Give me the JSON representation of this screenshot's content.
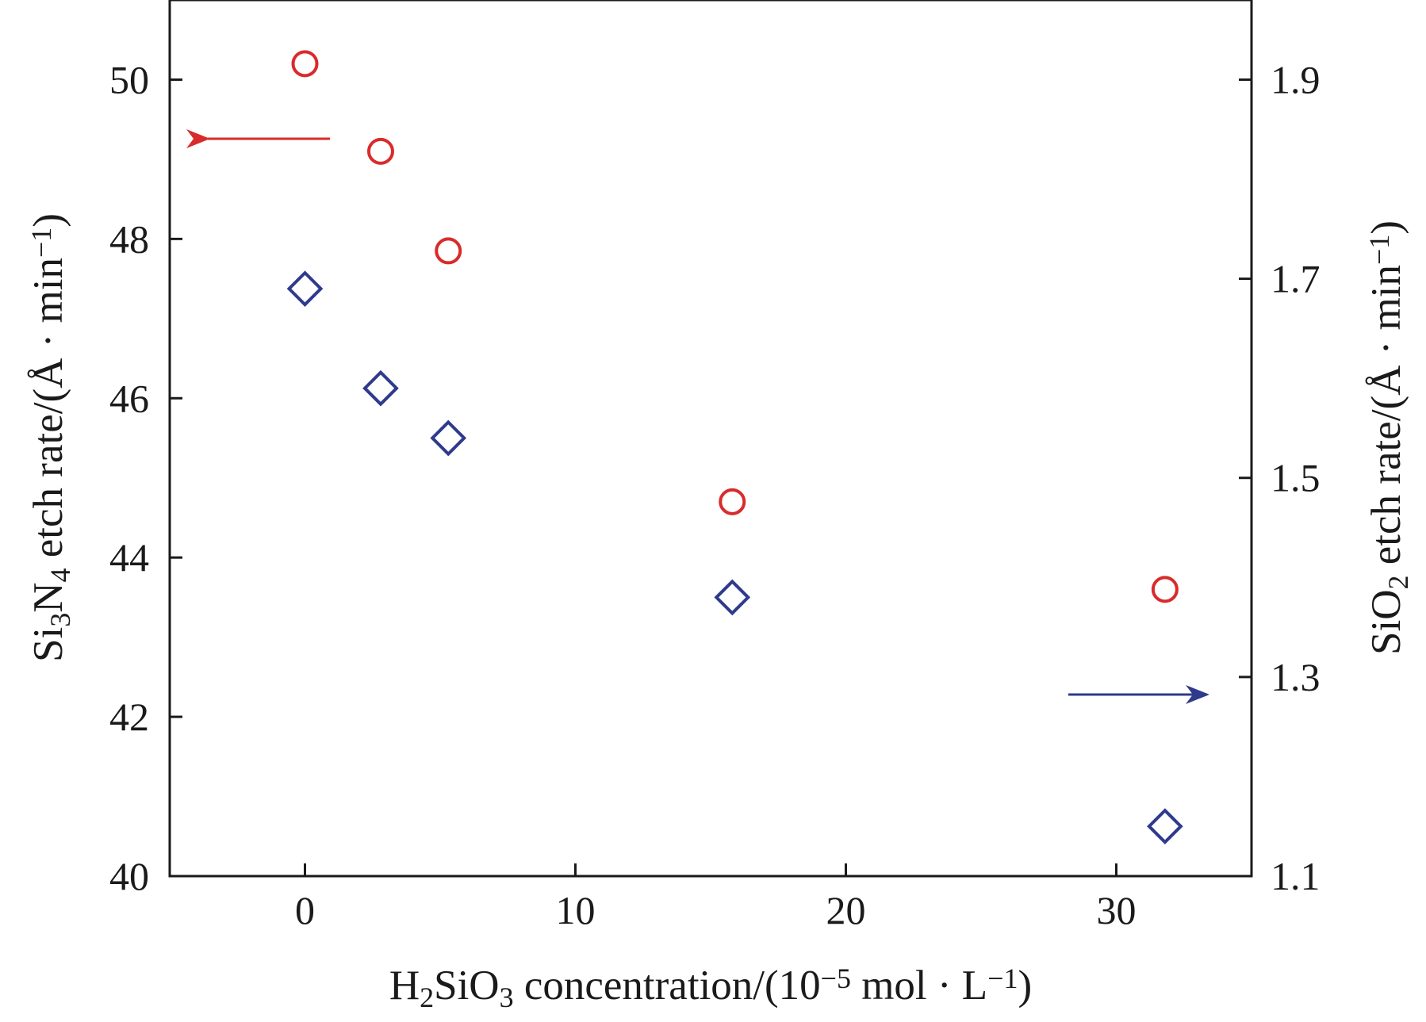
{
  "chart_data": {
    "type": "scatter",
    "x_axis": {
      "label_parts": [
        {
          "t": "H",
          "s": "n"
        },
        {
          "t": "2",
          "s": "sub"
        },
        {
          "t": "SiO",
          "s": "n"
        },
        {
          "t": "3",
          "s": "sub"
        },
        {
          "t": " concentration/(10",
          "s": "n"
        },
        {
          "t": "−5",
          "s": "sup"
        },
        {
          "t": " mol · L",
          "s": "n"
        },
        {
          "t": "−1",
          "s": "sup"
        },
        {
          "t": ")",
          "s": "n"
        }
      ],
      "range": [
        -5,
        35
      ],
      "ticks": [
        0,
        10,
        20,
        30
      ],
      "tick_labels": [
        "0",
        "10",
        "20",
        "30"
      ]
    },
    "y_left_axis": {
      "label_parts": [
        {
          "t": "Si",
          "s": "n"
        },
        {
          "t": "3",
          "s": "sub"
        },
        {
          "t": "N",
          "s": "n"
        },
        {
          "t": "4",
          "s": "sub"
        },
        {
          "t": " etch rate/(Å · min",
          "s": "n"
        },
        {
          "t": "−1",
          "s": "sup"
        },
        {
          "t": ")",
          "s": "n"
        }
      ],
      "range": [
        40,
        51
      ],
      "ticks": [
        40,
        42,
        44,
        46,
        48,
        50
      ],
      "tick_labels": [
        "40",
        "42",
        "44",
        "46",
        "48",
        "50"
      ]
    },
    "y_right_axis": {
      "label_parts": [
        {
          "t": "SiO",
          "s": "n"
        },
        {
          "t": "2",
          "s": "sub"
        },
        {
          "t": " etch rate/(Å · min",
          "s": "n"
        },
        {
          "t": "−1",
          "s": "sup"
        },
        {
          "t": ")",
          "s": "n"
        }
      ],
      "range": [
        1.1,
        1.98
      ],
      "ticks": [
        1.1,
        1.3,
        1.5,
        1.7,
        1.9
      ],
      "tick_labels": [
        "1.1",
        "1.3",
        "1.5",
        "1.7",
        "1.9"
      ]
    },
    "series": [
      {
        "axis": "left",
        "marker": "circle",
        "color": "#d92b2b",
        "points": [
          {
            "x": 0,
            "y": 50.2
          },
          {
            "x": 2.8,
            "y": 49.1
          },
          {
            "x": 5.3,
            "y": 47.85
          },
          {
            "x": 15.8,
            "y": 44.7
          },
          {
            "x": 31.8,
            "y": 43.6
          }
        ]
      },
      {
        "axis": "right",
        "marker": "diamond",
        "color": "#2e3a8c",
        "points": [
          {
            "x": 0,
            "y": 1.69
          },
          {
            "x": 2.8,
            "y": 1.59
          },
          {
            "x": 5.3,
            "y": 1.54
          },
          {
            "x": 15.8,
            "y": 1.38
          },
          {
            "x": 31.8,
            "y": 1.15
          }
        ]
      }
    ],
    "annotations": [
      {
        "type": "arrow",
        "direction": "left",
        "points_to_axis": "left",
        "color": "#d92b2b"
      },
      {
        "type": "arrow",
        "direction": "right",
        "points_to_axis": "right",
        "color": "#2e3a8c"
      }
    ],
    "grid": false,
    "legend": "none"
  }
}
